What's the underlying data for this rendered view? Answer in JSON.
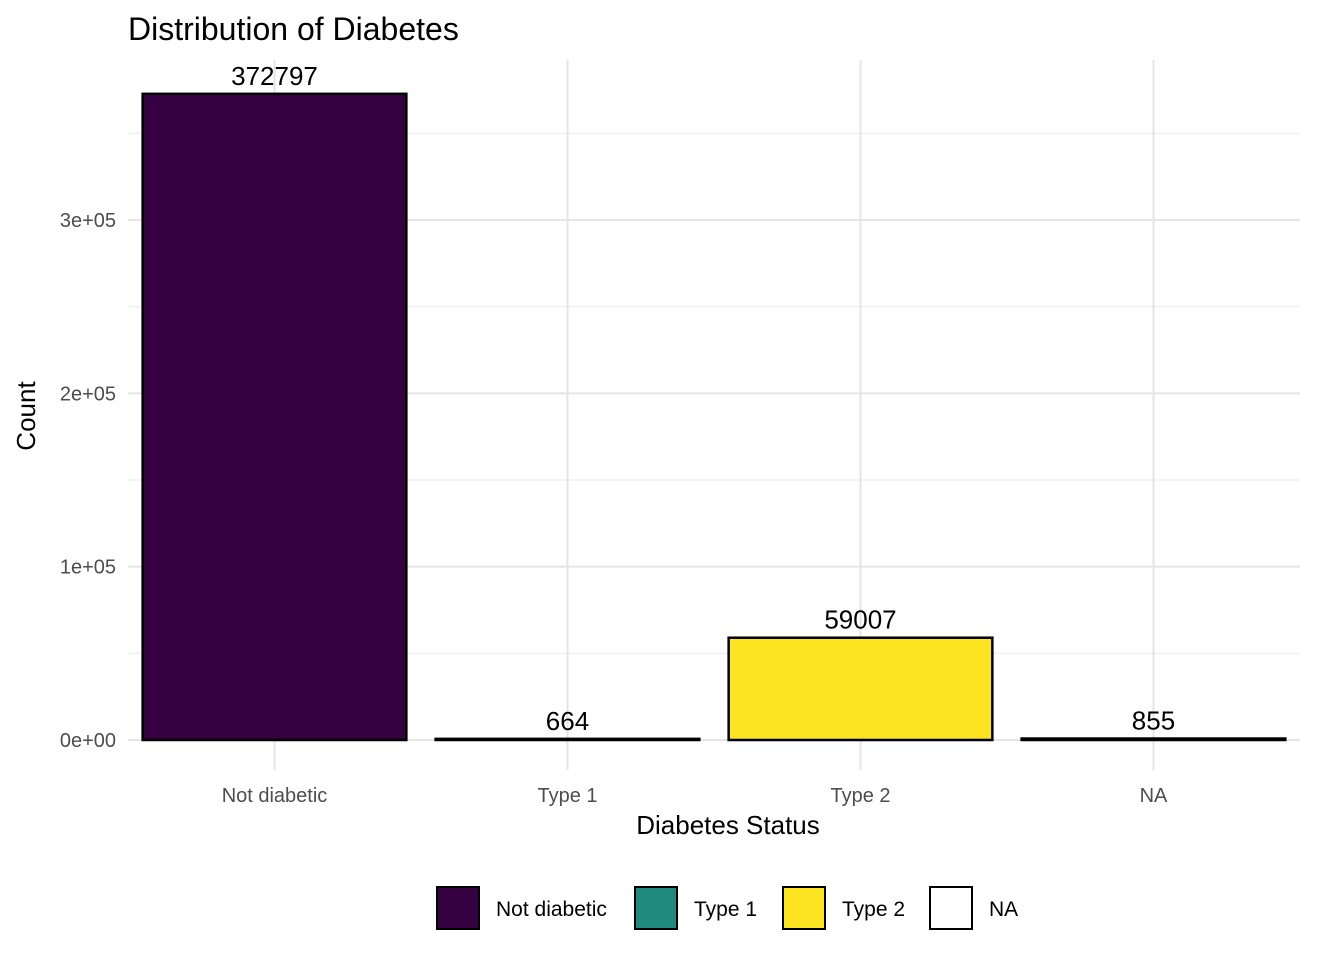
{
  "chart_data": {
    "type": "bar",
    "title": "Distribution of Diabetes",
    "xlabel": "Diabetes Status",
    "ylabel": "Count",
    "categories": [
      "Not diabetic",
      "Type 1",
      "Type 2",
      "NA"
    ],
    "values": [
      372797,
      664,
      59007,
      855
    ],
    "data_labels": [
      "372797",
      "664",
      "59007",
      "855"
    ],
    "colors": [
      "#360140",
      "#1f8a7e",
      "#fbe41f",
      "#ffffff"
    ],
    "y_ticks": [
      0,
      100000,
      200000,
      300000
    ],
    "y_tick_labels": [
      "0e+00",
      "1e+05",
      "2e+05",
      "3e+05"
    ],
    "ylim": [
      0,
      390000
    ],
    "grid": true,
    "legend": {
      "position": "bottom",
      "entries": [
        "Not diabetic",
        "Type 1",
        "Type 2",
        "NA"
      ]
    }
  }
}
